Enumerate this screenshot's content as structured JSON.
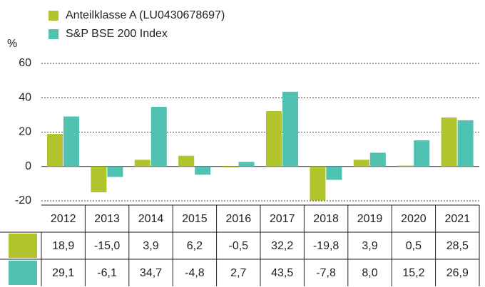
{
  "chart_data": {
    "type": "bar",
    "y_label": "%",
    "categories": [
      "2012",
      "2013",
      "2014",
      "2015",
      "2016",
      "2017",
      "2018",
      "2019",
      "2020",
      "2021"
    ],
    "series": [
      {
        "name": "Anteilklasse A (LU0430678697)",
        "color": "#b2c42c",
        "values": [
          18.9,
          -15.0,
          3.9,
          6.2,
          -0.5,
          32.2,
          -19.8,
          3.9,
          0.5,
          28.5
        ],
        "value_labels": [
          "18,9",
          "-15,0",
          "3,9",
          "6,2",
          "-0,5",
          "32,2",
          "-19,8",
          "3,9",
          "0,5",
          "28,5"
        ]
      },
      {
        "name": "S&P BSE 200 Index",
        "color": "#4fc2b1",
        "values": [
          29.1,
          -6.1,
          34.7,
          -4.8,
          2.7,
          43.5,
          -7.8,
          8.0,
          15.2,
          26.9
        ],
        "value_labels": [
          "29,1",
          "-6,1",
          "34,7",
          "-4,8",
          "2,7",
          "43,5",
          "-7,8",
          "8,0",
          "15,2",
          "26,9"
        ]
      }
    ],
    "ylim": [
      -20,
      60
    ],
    "yticks": [
      -20,
      0,
      20,
      40,
      60
    ],
    "grid": true
  }
}
